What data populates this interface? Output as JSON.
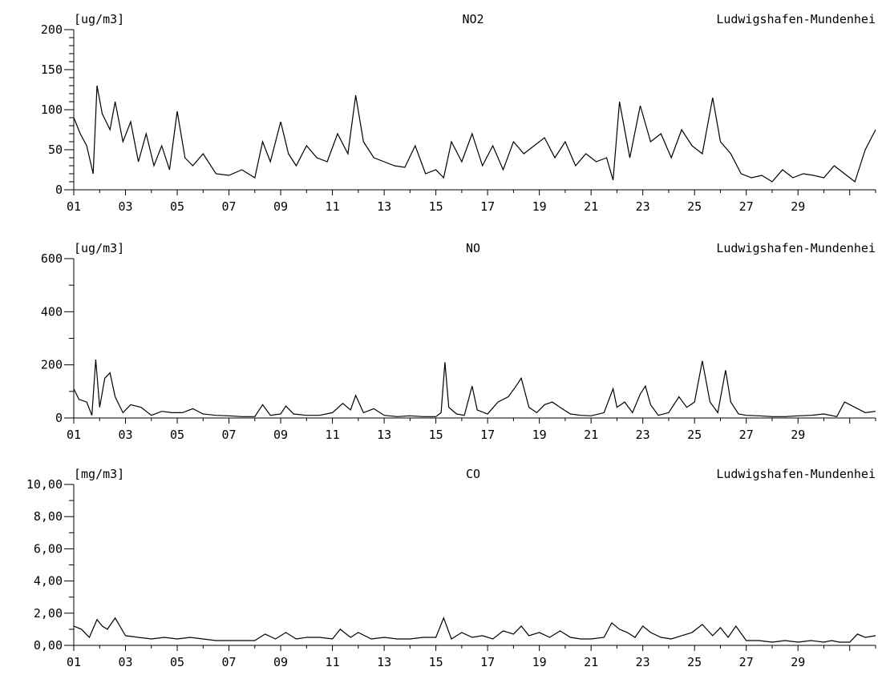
{
  "chart_data": [
    {
      "type": "line",
      "unit": "[ug/m3]",
      "title": "NO2",
      "station": "Ludwigshafen-Mundenhei",
      "ylim": [
        0,
        200
      ],
      "y_ticks": [
        "0",
        "50",
        "100",
        "150",
        "200"
      ],
      "x_ticks": [
        "01",
        "03",
        "05",
        "07",
        "09",
        "11",
        "13",
        "15",
        "17",
        "19",
        "21",
        "23",
        "25",
        "27",
        "29"
      ],
      "xlim": [
        1,
        32
      ],
      "color": "#000000",
      "x": [
        1.0,
        1.25,
        1.5,
        1.75,
        1.9,
        2.1,
        2.4,
        2.6,
        2.9,
        3.2,
        3.5,
        3.8,
        4.1,
        4.4,
        4.7,
        5.0,
        5.3,
        5.6,
        6.0,
        6.5,
        7.0,
        7.5,
        8.0,
        8.3,
        8.6,
        9.0,
        9.3,
        9.6,
        10.0,
        10.4,
        10.8,
        11.2,
        11.6,
        11.9,
        12.2,
        12.6,
        13.0,
        13.4,
        13.8,
        14.2,
        14.6,
        15.0,
        15.3,
        15.6,
        16.0,
        16.4,
        16.8,
        17.2,
        17.6,
        18.0,
        18.4,
        18.8,
        19.2,
        19.6,
        20.0,
        20.4,
        20.8,
        21.2,
        21.6,
        21.85,
        22.1,
        22.5,
        22.9,
        23.3,
        23.7,
        24.1,
        24.5,
        24.9,
        25.3,
        25.7,
        26.0,
        26.4,
        26.8,
        27.2,
        27.6,
        28.0,
        28.4,
        28.8,
        29.2,
        29.6,
        30.0,
        30.4,
        30.8,
        31.2,
        31.6,
        32.0
      ],
      "values": [
        90,
        70,
        55,
        20,
        130,
        95,
        75,
        110,
        60,
        85,
        35,
        70,
        30,
        55,
        25,
        98,
        40,
        30,
        45,
        20,
        18,
        25,
        15,
        60,
        35,
        85,
        45,
        30,
        55,
        40,
        35,
        70,
        45,
        118,
        60,
        40,
        35,
        30,
        28,
        55,
        20,
        25,
        15,
        60,
        35,
        70,
        30,
        55,
        25,
        60,
        45,
        55,
        65,
        40,
        60,
        30,
        45,
        35,
        40,
        12,
        110,
        40,
        105,
        60,
        70,
        40,
        75,
        55,
        45,
        115,
        60,
        45,
        20,
        15,
        18,
        10,
        25,
        15,
        20,
        18,
        15,
        30,
        20,
        10,
        50,
        75
      ]
    },
    {
      "type": "line",
      "unit": "[ug/m3]",
      "title": "NO",
      "station": "Ludwigshafen-Mundenhei",
      "ylim": [
        0,
        600
      ],
      "y_ticks": [
        "0",
        "200",
        "400",
        "600"
      ],
      "x_ticks": [
        "01",
        "03",
        "05",
        "07",
        "09",
        "11",
        "13",
        "15",
        "17",
        "19",
        "21",
        "23",
        "25",
        "27",
        "29"
      ],
      "xlim": [
        1,
        32
      ],
      "color": "#000000",
      "x": [
        1.0,
        1.2,
        1.5,
        1.7,
        1.85,
        2.0,
        2.2,
        2.4,
        2.6,
        2.9,
        3.2,
        3.6,
        4.0,
        4.4,
        4.8,
        5.2,
        5.6,
        6.0,
        6.5,
        7.0,
        7.5,
        8.0,
        8.3,
        8.6,
        9.0,
        9.2,
        9.5,
        10.0,
        10.5,
        11.0,
        11.4,
        11.7,
        11.9,
        12.2,
        12.6,
        13.0,
        13.5,
        14.0,
        14.5,
        15.0,
        15.2,
        15.35,
        15.5,
        15.8,
        16.1,
        16.4,
        16.6,
        17.0,
        17.4,
        17.8,
        18.1,
        18.3,
        18.6,
        18.9,
        19.2,
        19.5,
        19.8,
        20.2,
        20.6,
        21.0,
        21.5,
        21.85,
        22.0,
        22.3,
        22.6,
        22.9,
        23.1,
        23.3,
        23.6,
        24.0,
        24.4,
        24.7,
        25.0,
        25.3,
        25.6,
        25.9,
        26.2,
        26.4,
        26.7,
        27.0,
        27.5,
        28.0,
        28.5,
        29.0,
        29.5,
        30.0,
        30.5,
        30.8,
        31.2,
        31.6,
        32.0
      ],
      "values": [
        110,
        70,
        60,
        10,
        220,
        40,
        150,
        170,
        80,
        20,
        50,
        40,
        10,
        25,
        20,
        20,
        35,
        15,
        10,
        8,
        5,
        5,
        50,
        10,
        15,
        45,
        15,
        10,
        10,
        20,
        55,
        30,
        85,
        20,
        35,
        10,
        5,
        8,
        5,
        5,
        20,
        210,
        40,
        15,
        10,
        120,
        30,
        15,
        60,
        80,
        120,
        150,
        40,
        20,
        50,
        60,
        40,
        15,
        10,
        8,
        20,
        110,
        40,
        60,
        20,
        90,
        120,
        50,
        10,
        20,
        80,
        40,
        60,
        215,
        60,
        20,
        180,
        60,
        15,
        10,
        8,
        5,
        5,
        8,
        10,
        15,
        5,
        60,
        40,
        20,
        25
      ]
    },
    {
      "type": "line",
      "unit": "[mg/m3]",
      "title": "CO",
      "station": "Ludwigshafen-Mundenhei",
      "ylim": [
        0,
        10
      ],
      "y_ticks": [
        "0,00",
        "2,00",
        "4,00",
        "6,00",
        "8,00",
        "10,00"
      ],
      "x_ticks": [
        "01",
        "03",
        "05",
        "07",
        "09",
        "11",
        "13",
        "15",
        "17",
        "19",
        "21",
        "23",
        "25",
        "27",
        "29"
      ],
      "xlim": [
        1,
        32
      ],
      "color": "#000000",
      "x": [
        1.0,
        1.3,
        1.6,
        1.9,
        2.1,
        2.3,
        2.6,
        3.0,
        3.5,
        4.0,
        4.5,
        5.0,
        5.5,
        6.0,
        6.5,
        7.0,
        7.5,
        8.0,
        8.4,
        8.8,
        9.2,
        9.6,
        10.0,
        10.5,
        11.0,
        11.3,
        11.7,
        12.0,
        12.5,
        13.0,
        13.5,
        14.0,
        14.5,
        15.0,
        15.3,
        15.6,
        16.0,
        16.4,
        16.8,
        17.2,
        17.6,
        18.0,
        18.3,
        18.6,
        19.0,
        19.4,
        19.8,
        20.2,
        20.6,
        21.0,
        21.5,
        21.8,
        22.1,
        22.4,
        22.7,
        23.0,
        23.3,
        23.7,
        24.1,
        24.5,
        24.9,
        25.3,
        25.7,
        26.0,
        26.3,
        26.6,
        27.0,
        27.5,
        28.0,
        28.5,
        29.0,
        29.5,
        30.0,
        30.3,
        30.6,
        31.0,
        31.3,
        31.6,
        32.0
      ],
      "values": [
        1.2,
        1.0,
        0.5,
        1.6,
        1.2,
        1.0,
        1.7,
        0.6,
        0.5,
        0.4,
        0.5,
        0.4,
        0.5,
        0.4,
        0.3,
        0.3,
        0.3,
        0.3,
        0.7,
        0.4,
        0.8,
        0.4,
        0.5,
        0.5,
        0.4,
        1.0,
        0.5,
        0.8,
        0.4,
        0.5,
        0.4,
        0.4,
        0.5,
        0.5,
        1.7,
        0.4,
        0.8,
        0.5,
        0.6,
        0.4,
        0.9,
        0.7,
        1.2,
        0.6,
        0.8,
        0.5,
        0.9,
        0.5,
        0.4,
        0.4,
        0.5,
        1.4,
        1.0,
        0.8,
        0.5,
        1.2,
        0.8,
        0.5,
        0.4,
        0.6,
        0.8,
        1.3,
        0.6,
        1.1,
        0.5,
        1.2,
        0.3,
        0.3,
        0.2,
        0.3,
        0.2,
        0.3,
        0.2,
        0.3,
        0.2,
        0.2,
        0.7,
        0.5,
        0.6
      ]
    }
  ]
}
